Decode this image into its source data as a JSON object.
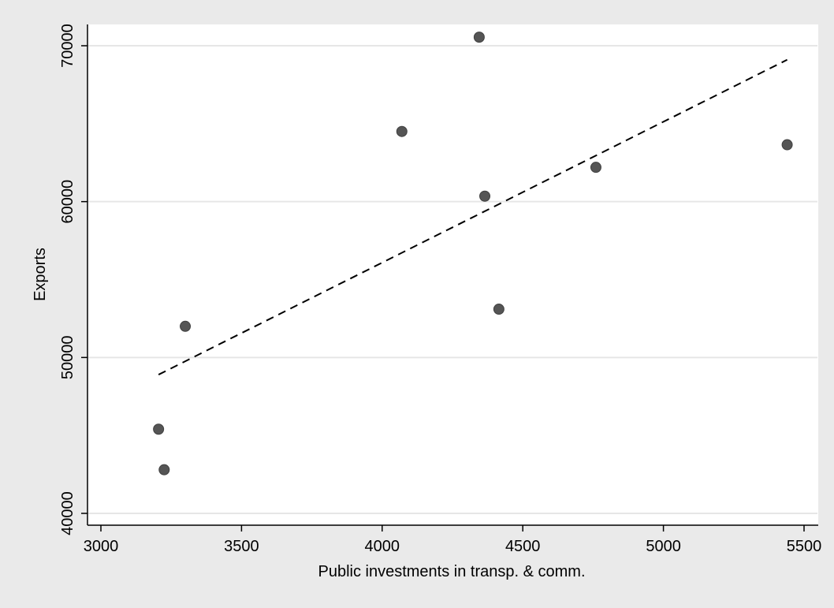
{
  "chart_data": {
    "type": "scatter",
    "title": "",
    "xlabel": "Public investments in transp. & comm.",
    "ylabel": "Exports",
    "xlim": [
      3000,
      5500
    ],
    "ylim": [
      40000,
      70000
    ],
    "xticks": [
      3000,
      3500,
      4000,
      4500,
      5000,
      5500
    ],
    "yticks": [
      40000,
      50000,
      60000,
      70000
    ],
    "grid": "horizontal",
    "legend": "none",
    "series": [
      {
        "type": "scatter",
        "points": [
          {
            "x": 3205,
            "y": 45400
          },
          {
            "x": 3225,
            "y": 42800
          },
          {
            "x": 3300,
            "y": 52000
          },
          {
            "x": 4070,
            "y": 64500
          },
          {
            "x": 4345,
            "y": 70550
          },
          {
            "x": 4365,
            "y": 60350
          },
          {
            "x": 4415,
            "y": 53100
          },
          {
            "x": 4760,
            "y": 62200
          },
          {
            "x": 5440,
            "y": 63650
          }
        ],
        "color": "#555555"
      },
      {
        "type": "line",
        "style": "dashed",
        "points": [
          {
            "x": 3205,
            "y": 48900
          },
          {
            "x": 5440,
            "y": 69100
          }
        ],
        "color": "#000000"
      }
    ],
    "colors": {
      "background": "#eaeaea",
      "plot_background": "#ffffff",
      "grid": "#e6e6e6"
    }
  }
}
